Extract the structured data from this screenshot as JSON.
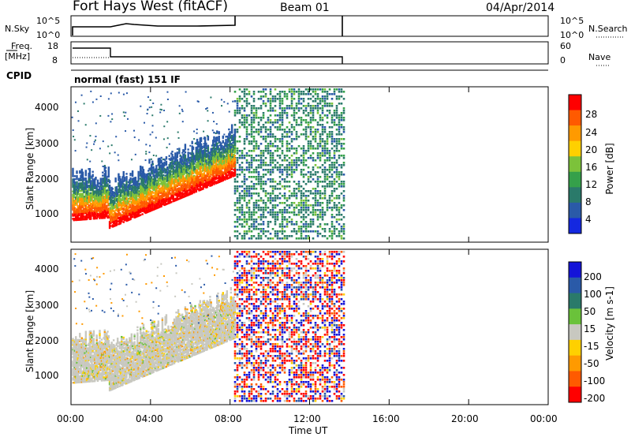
{
  "header": {
    "station": "Fort Hays West (fitACF)",
    "beam": "Beam 01",
    "date": "04/Apr/2014"
  },
  "panels": {
    "noise": {
      "left_label": "N.Sky",
      "left_ticks": [
        "10^5",
        "10^0"
      ],
      "right_ticks": [
        "10^5",
        "10^0"
      ],
      "right_label": "N.Search"
    },
    "freq": {
      "left_label_1": "Freq.",
      "left_label_2": "[MHz]",
      "left_ticks": [
        "18",
        "8"
      ],
      "right_ticks": [
        "60",
        "0"
      ],
      "right_label": "Nave"
    },
    "cpid": {
      "label": "CPID",
      "value": "normal (fast) 151 IF"
    }
  },
  "chart_data": [
    {
      "type": "heatmap",
      "name": "power",
      "ylabel": "Slant Range [km]",
      "yticks": [
        "1000",
        "2000",
        "3000",
        "4000"
      ],
      "ylim": [
        500,
        4600
      ],
      "xlim": [
        "00:00",
        "24:00"
      ],
      "colorbar": {
        "label": "Power [dB]",
        "ticks": [
          "28",
          "24",
          "20",
          "16",
          "12",
          "8",
          "4"
        ],
        "colors": [
          "#ff0000",
          "#ff5a00",
          "#ff9a00",
          "#ffd000",
          "#7cc23a",
          "#35a04a",
          "#2a7a6a",
          "#2a5aa8",
          "#1428e0"
        ]
      },
      "summary": {
        "dense_noise_block_hours": [
          8.2,
          13.7
        ],
        "echo_band_start_km": 1100,
        "echo_band_end_km": 2300
      }
    },
    {
      "type": "heatmap",
      "name": "velocity",
      "ylabel": "Slant Range [km]",
      "yticks": [
        "1000",
        "2000",
        "3000",
        "4000"
      ],
      "ylim": [
        500,
        4600
      ],
      "xlim": [
        "00:00",
        "24:00"
      ],
      "colorbar": {
        "label": "Velocity [m s-1]",
        "ticks": [
          "200",
          "100",
          "50",
          "15",
          "-15",
          "-50",
          "-100",
          "-200"
        ],
        "colors": [
          "#1414d8",
          "#2a5aa8",
          "#2a7a6a",
          "#6ac23a",
          "#c8c8c0",
          "#ffd000",
          "#ff9a00",
          "#ff5a00",
          "#ff0000"
        ]
      }
    }
  ],
  "x_axis": {
    "ticks": [
      "00:00",
      "04:00",
      "08:00",
      "12:00",
      "16:00",
      "20:00",
      "00:00"
    ],
    "label": "Time UT"
  }
}
